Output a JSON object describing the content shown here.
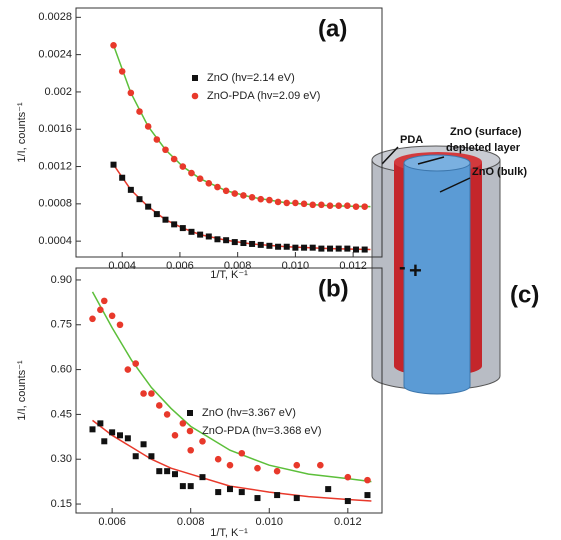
{
  "chart_data": [
    {
      "type": "scatter",
      "panel_label": "(a)",
      "xlabel": "1/T, K⁻¹",
      "ylabel": "1/I, counts⁻¹",
      "xlim": [
        0.0024,
        0.013
      ],
      "xticks": [
        0.004,
        0.006,
        0.008,
        {
          "value": 0.01,
          "label": "0.010"
        },
        0.012
      ],
      "ylim": [
        0.00023,
        0.0029
      ],
      "yticks": [
        0.0004,
        0.0008,
        0.0012,
        0.0016,
        0.002,
        0.0024,
        0.0028
      ],
      "series": [
        {
          "name": "ZnO (hv=2.14 eV)",
          "color": "#111111",
          "marker": "square",
          "x": [
            0.0037,
            0.004,
            0.0043,
            0.0046,
            0.0049,
            0.0052,
            0.0055,
            0.0058,
            0.0061,
            0.0064,
            0.0067,
            0.007,
            0.0073,
            0.0076,
            0.0079,
            0.0082,
            0.0085,
            0.0088,
            0.0091,
            0.0094,
            0.0097,
            0.01,
            0.0103,
            0.0106,
            0.0109,
            0.0112,
            0.0115,
            0.0118,
            0.0121,
            0.0124
          ],
          "values": [
            0.00122,
            0.00108,
            0.00095,
            0.00085,
            0.00077,
            0.00069,
            0.00063,
            0.00058,
            0.00054,
            0.0005,
            0.00047,
            0.00045,
            0.00042,
            0.00041,
            0.00039,
            0.00038,
            0.00037,
            0.00036,
            0.00035,
            0.00034,
            0.00034,
            0.00033,
            0.00033,
            0.00033,
            0.00032,
            0.00032,
            0.00032,
            0.00032,
            0.00031,
            0.00031
          ]
        },
        {
          "name": "ZnO-PDA (hv=2.09 eV)",
          "color": "#e8392b",
          "marker": "circle",
          "x": [
            0.0037,
            0.004,
            0.0043,
            0.0046,
            0.0049,
            0.0052,
            0.0055,
            0.0058,
            0.0061,
            0.0064,
            0.0067,
            0.007,
            0.0073,
            0.0076,
            0.0079,
            0.0082,
            0.0085,
            0.0088,
            0.0091,
            0.0094,
            0.0097,
            0.01,
            0.0103,
            0.0106,
            0.0109,
            0.0112,
            0.0115,
            0.0118,
            0.0121,
            0.0124
          ],
          "values": [
            0.0025,
            0.00222,
            0.00199,
            0.00179,
            0.00163,
            0.00149,
            0.00138,
            0.00128,
            0.0012,
            0.00113,
            0.00107,
            0.00102,
            0.00098,
            0.00094,
            0.00091,
            0.00089,
            0.00087,
            0.00085,
            0.00084,
            0.00082,
            0.00081,
            0.00081,
            0.0008,
            0.00079,
            0.00079,
            0.00078,
            0.00078,
            0.00078,
            0.00077,
            0.00077
          ]
        }
      ],
      "fits": [
        {
          "color": "#e8392b",
          "x": [
            0.0037,
            0.0043,
            0.0049,
            0.0055,
            0.0061,
            0.0067,
            0.0076,
            0.0085,
            0.0097,
            0.0112,
            0.0126
          ],
          "values": [
            0.00122,
            0.00095,
            0.00077,
            0.00063,
            0.00054,
            0.00047,
            0.00041,
            0.00037,
            0.00034,
            0.00032,
            0.00031
          ]
        },
        {
          "color": "#5cbf3a",
          "x": [
            0.0037,
            0.0043,
            0.0049,
            0.0055,
            0.0061,
            0.0067,
            0.0076,
            0.0085,
            0.0097,
            0.0112,
            0.0126
          ],
          "values": [
            0.0025,
            0.00199,
            0.00163,
            0.00138,
            0.0012,
            0.00107,
            0.00094,
            0.00087,
            0.00081,
            0.00078,
            0.00077
          ]
        }
      ]
    },
    {
      "type": "scatter",
      "panel_label": "(b)",
      "xlabel": "1/T, K⁻¹",
      "ylabel": "1/I, counts⁻¹",
      "xlim": [
        0.00508,
        0.01287
      ],
      "xticks": [
        0.006,
        0.008,
        {
          "value": 0.01,
          "label": "0.010"
        },
        0.012
      ],
      "ylim": [
        0.12,
        0.94
      ],
      "yticks": [
        0.15,
        {
          "value": 0.3,
          "label": "0.30"
        },
        0.45,
        {
          "value": 0.6,
          "label": "0.60"
        },
        0.75,
        {
          "value": 0.9,
          "label": "0.90"
        }
      ],
      "series": [
        {
          "name": "ZnO (hv=3.367 eV)",
          "color": "#111111",
          "marker": "square",
          "x": [
            0.0055,
            0.0057,
            0.0058,
            0.006,
            0.0062,
            0.0064,
            0.0066,
            0.0068,
            0.007,
            0.0072,
            0.0074,
            0.0076,
            0.0078,
            0.008,
            0.0083,
            0.0087,
            0.009,
            0.0093,
            0.0097,
            0.0102,
            0.0107,
            0.0115,
            0.012,
            0.0125
          ],
          "values": [
            0.4,
            0.42,
            0.36,
            0.39,
            0.38,
            0.37,
            0.31,
            0.35,
            0.31,
            0.26,
            0.26,
            0.25,
            0.21,
            0.21,
            0.24,
            0.19,
            0.2,
            0.19,
            0.17,
            0.18,
            0.17,
            0.2,
            0.16,
            0.18
          ]
        },
        {
          "name": "ZnO-PDA (hv=3.368 eV)",
          "color": "#e8392b",
          "marker": "circle",
          "x": [
            0.0055,
            0.0057,
            0.0058,
            0.006,
            0.0062,
            0.0064,
            0.0066,
            0.0068,
            0.007,
            0.0072,
            0.0074,
            0.0076,
            0.0078,
            0.008,
            0.0083,
            0.0087,
            0.009,
            0.0093,
            0.0097,
            0.0102,
            0.0107,
            0.0113,
            0.012,
            0.0125
          ],
          "values": [
            0.77,
            0.8,
            0.83,
            0.78,
            0.75,
            0.6,
            0.62,
            0.52,
            0.52,
            0.48,
            0.45,
            0.38,
            0.42,
            0.33,
            0.36,
            0.3,
            0.28,
            0.32,
            0.27,
            0.26,
            0.28,
            0.28,
            0.24,
            0.23
          ]
        }
      ],
      "fits": [
        {
          "color": "#e8392b",
          "x": [
            0.0055,
            0.006,
            0.0065,
            0.007,
            0.0075,
            0.008,
            0.009,
            0.01,
            0.011,
            0.012,
            0.0126
          ],
          "values": [
            0.43,
            0.38,
            0.34,
            0.3,
            0.27,
            0.25,
            0.21,
            0.19,
            0.175,
            0.165,
            0.16
          ]
        },
        {
          "color": "#5cbf3a",
          "x": [
            0.0055,
            0.006,
            0.0065,
            0.007,
            0.0075,
            0.008,
            0.009,
            0.01,
            0.011,
            0.012,
            0.0126
          ],
          "values": [
            0.86,
            0.74,
            0.63,
            0.54,
            0.47,
            0.41,
            0.33,
            0.28,
            0.25,
            0.235,
            0.225
          ]
        }
      ]
    }
  ],
  "diagram": {
    "panel_label": "(c)",
    "outer": "PDA",
    "surface_line1": "ZnO (surface)",
    "surface_line2": "depleted layer",
    "bulk": "ZnO (bulk)",
    "minus": "-",
    "plus": "+"
  }
}
